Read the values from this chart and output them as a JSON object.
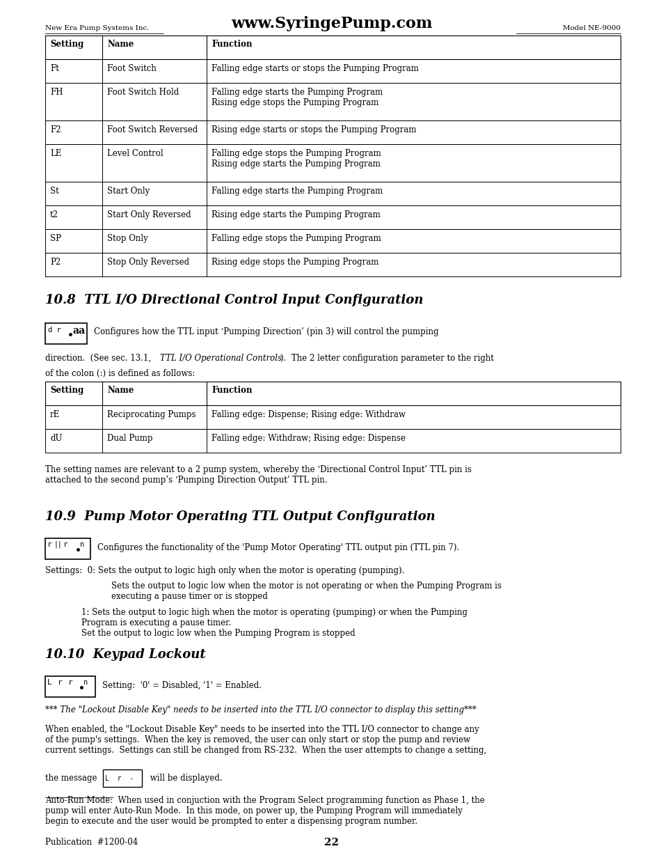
{
  "page_width": 9.54,
  "page_height": 12.35,
  "bg_color": "#ffffff",
  "header_left": "New Era Pump Systems Inc.",
  "header_center": "www.SyringePump.com",
  "header_right": "Model NE-9000",
  "table1_headers": [
    "Setting",
    "Name",
    "Function"
  ],
  "table1_rows": [
    [
      "Ft",
      "Foot Switch",
      "Falling edge starts or stops the Pumping Program"
    ],
    [
      "FH",
      "Foot Switch Hold",
      "Falling edge starts the Pumping Program\nRising edge stops the Pumping Program"
    ],
    [
      "F2",
      "Foot Switch Reversed",
      "Rising edge starts or stops the Pumping Program"
    ],
    [
      "LE",
      "Level Control",
      "Falling edge stops the Pumping Program\nRising edge starts the Pumping Program"
    ],
    [
      "St",
      "Start Only",
      "Falling edge starts the Pumping Program"
    ],
    [
      "t2",
      "Start Only Reversed",
      "Rising edge starts the Pumping Program"
    ],
    [
      "SP",
      "Stop Only",
      "Falling edge stops the Pumping Program"
    ],
    [
      "P2",
      "Stop Only Reversed",
      "Rising edge stops the Pumping Program"
    ]
  ],
  "s8_title": "10.8  TTL I/O Directional Control Input Configuration",
  "s8_body_plain1": "Configures how the TTL input ‘Pumping Direction’ (pin 3) will control the pumping",
  "s8_body_plain2": "direction.  (See sec. 13.1, ",
  "s8_body_italic": "TTL I/O Operational Controls",
  "s8_body_plain3": ").  The 2 letter configuration parameter to the right",
  "s8_body_plain4": "of the colon (:) is defined as follows:",
  "table2_headers": [
    "Setting",
    "Name",
    "Function"
  ],
  "table2_rows": [
    [
      "rE",
      "Reciprocating Pumps",
      "Falling edge: Dispense; Rising edge: Withdraw"
    ],
    [
      "dU",
      "Dual Pump",
      "Falling edge: Withdraw; Rising edge: Dispense"
    ]
  ],
  "s8_note": "The setting names are relevant to a 2 pump system, whereby the ‘Directional Control Input’ TTL pin is\nattached to the second pump’s ‘Pumping Direction Output’ TTL pin.",
  "s9_title": "10.9  Pump Motor Operating TTL Output Configuration",
  "s9_body": "Configures the functionality of the 'Pump Motor Operating' TTL output pin (TTL pin 7).",
  "s9_s0_label": "Settings:  0: Sets the output to logic high only when the motor is operating (pumping).",
  "s9_s0_cont": "Sets the output to logic low when the motor is not operating or when the Pumping Program is\nexecuting a pause timer or is stopped",
  "s9_s1": "1: Sets the output to logic high when the motor is operating (pumping) or when the Pumping\nProgram is executing a pause timer.\nSet the output to logic low when the Pumping Program is stopped",
  "s10_title": "10.10  Keypad Lockout",
  "s10_body": "Setting:  '0' = Disabled, '1' = Enabled.",
  "s10_note_star": "*** The \"Lockout Disable Key\" needs to be inserted into the TTL I/O connector to display this setting***",
  "s10_body2": "When enabled, the \"Lockout Disable Key\" needs to be inserted into the TTL I/O connector to change any\nof the pump's settings.  When the key is removed, the user can only start or stop the pump and review\ncurrent settings.  Settings can still be changed from RS-232.  When the user attempts to change a setting,",
  "s10_msg_prefix": "the message ",
  "s10_msg_suffix": " will be displayed.",
  "s10_autorun": "Auto-Run Mode:  When used in conjuction with the Program Select programming function as Phase 1, the\npump will enter Auto-Run Mode.  In this mode, on power up, the Pumping Program will immediately\nbegin to execute and the user would be prompted to enter a dispensing program number.",
  "s10_autorun_ul": "Auto-Run Mode:",
  "footer_left": "Publication  #1200-04",
  "footer_center": "22"
}
